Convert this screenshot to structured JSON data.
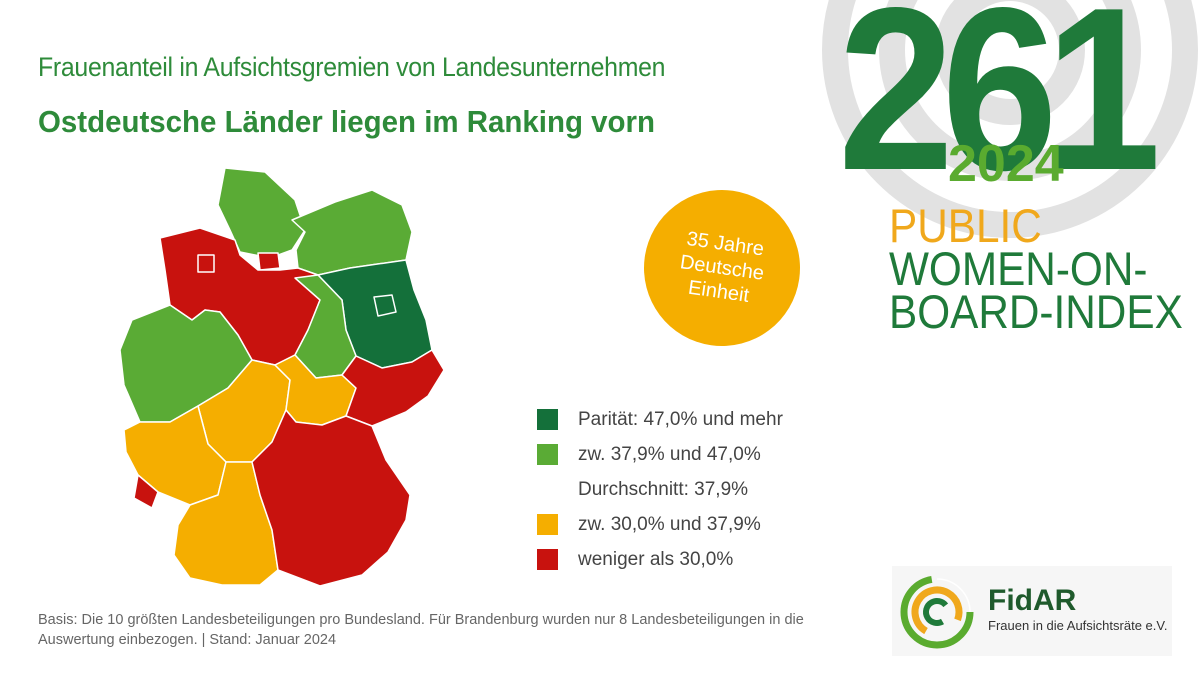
{
  "header": {
    "title": "Frauenanteil in Aufsichtsgremien von Landesunternehmen",
    "subtitle": "Ostdeutsche Länder liegen im Ranking vorn"
  },
  "index_brand": {
    "number": "261",
    "year": "2024",
    "line1": "PUBLIC",
    "line2": "WOMEN-ON-",
    "line3": "BOARD-INDEX"
  },
  "badge": {
    "line1": "35 Jahre",
    "line2": "Deutsche",
    "line3": "Einheit"
  },
  "colors": {
    "paritaet": "#14703a",
    "above_average": "#5aab35",
    "below_average": "#f5ae00",
    "low": "#c8120e",
    "brand_green": "#1f7a3a",
    "brand_orange": "#f0a81c"
  },
  "legend": {
    "items": [
      {
        "label": "Parität: 47,0% und mehr",
        "color": "#14703a"
      },
      {
        "label": "zw. 37,9% und 47,0%",
        "color": "#5aab35"
      },
      {
        "label": "Durchschnitt: 37,9%",
        "color": null
      },
      {
        "label": "zw. 30,0% und 37,9%",
        "color": "#f5ae00"
      },
      {
        "label": "weniger als 30,0%",
        "color": "#c8120e"
      }
    ]
  },
  "map": {
    "regions": [
      {
        "name": "Schleswig-Holstein",
        "category": "above_average"
      },
      {
        "name": "Mecklenburg-Vorpommern",
        "category": "above_average"
      },
      {
        "name": "Hamburg",
        "category": "low"
      },
      {
        "name": "Bremen",
        "category": "low"
      },
      {
        "name": "Niedersachsen",
        "category": "low"
      },
      {
        "name": "Brandenburg",
        "category": "paritaet"
      },
      {
        "name": "Berlin",
        "category": "paritaet"
      },
      {
        "name": "Sachsen-Anhalt",
        "category": "above_average"
      },
      {
        "name": "Nordrhein-Westfalen",
        "category": "above_average"
      },
      {
        "name": "Hessen",
        "category": "below_average"
      },
      {
        "name": "Thüringen",
        "category": "below_average"
      },
      {
        "name": "Sachsen",
        "category": "low"
      },
      {
        "name": "Rheinland-Pfalz",
        "category": "below_average"
      },
      {
        "name": "Saarland",
        "category": "low"
      },
      {
        "name": "Baden-Württemberg",
        "category": "below_average"
      },
      {
        "name": "Bayern",
        "category": "low"
      }
    ]
  },
  "footnote": {
    "line1": "Basis: Die 10 größten Landesbeteiligungen pro Bundesland. Für Brandenburg wurden nur 8 Landesbeteiligungen in die",
    "line2": "Auswertung einbezogen. | Stand: Januar 2024"
  },
  "logo": {
    "name": "FidAR",
    "tagline": "Frauen in die Aufsichtsräte e.V."
  }
}
